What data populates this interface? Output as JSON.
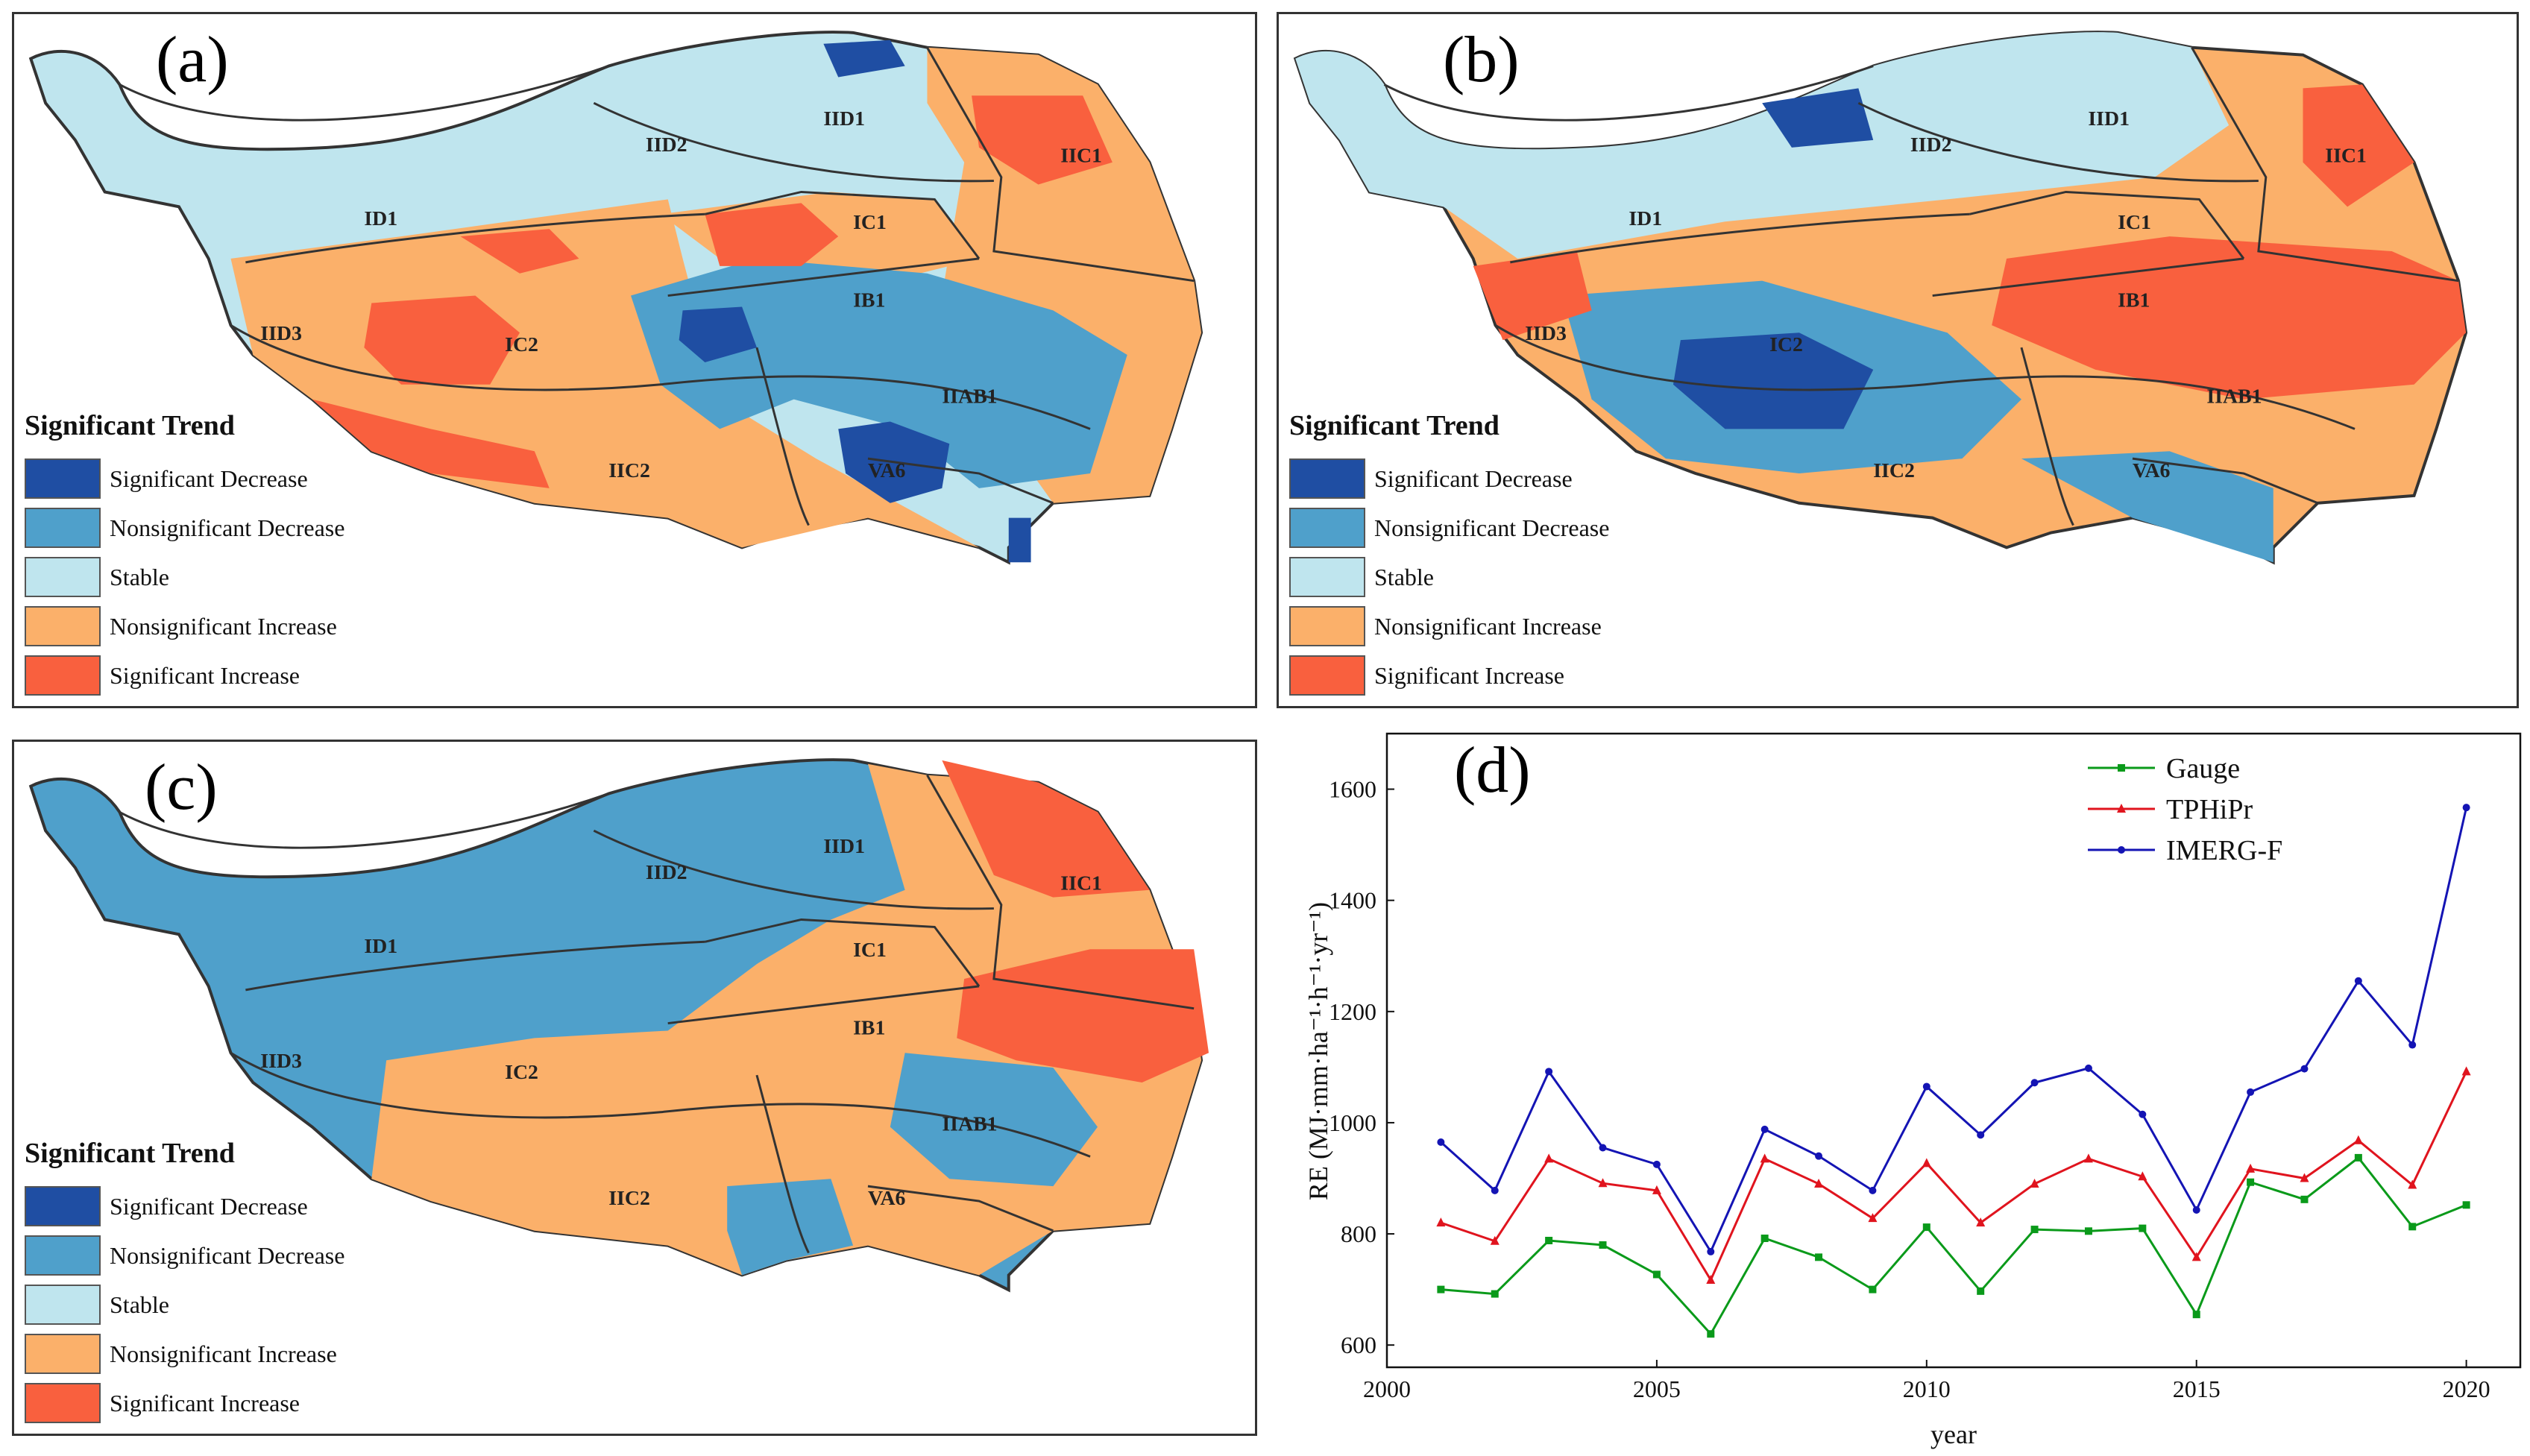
{
  "panels": {
    "a": {
      "label": "(a)"
    },
    "b": {
      "label": "(b)"
    },
    "c": {
      "label": "(c)"
    },
    "d": {
      "label": "(d)"
    }
  },
  "legend": {
    "title": "Significant Trend",
    "items": [
      {
        "label": "Significant Decrease",
        "color": "#1f4ea3"
      },
      {
        "label": "Nonsignificant Decrease",
        "color": "#4fa0cb"
      },
      {
        "label": "Stable",
        "color": "#bfe5ee"
      },
      {
        "label": "Nonsignificant Increase",
        "color": "#fbb06a"
      },
      {
        "label": "Significant Increase",
        "color": "#f9603e"
      }
    ]
  },
  "regions": {
    "IID1": "IID1",
    "IID2": "IID2",
    "IIC1": "IIC1",
    "ID1": "ID1",
    "IC1": "IC1",
    "IB1": "IB1",
    "IID3": "IID3",
    "IC2": "IC2",
    "IIAB1": "IIAB1",
    "IIC2": "IIC2",
    "VA6": "VA6"
  },
  "chart_data": {
    "type": "line",
    "title": "",
    "xlabel": "year",
    "ylabel": "RE (MJ·mm·ha⁻¹·h⁻¹·yr⁻¹)",
    "xlim": [
      2000,
      2021
    ],
    "ylim": [
      560,
      1700
    ],
    "x_ticks": [
      2000,
      2005,
      2010,
      2015,
      2020
    ],
    "y_ticks": [
      600,
      800,
      1000,
      1200,
      1400,
      1600
    ],
    "x": [
      2001,
      2002,
      2003,
      2004,
      2005,
      2006,
      2007,
      2008,
      2009,
      2010,
      2011,
      2012,
      2013,
      2014,
      2015,
      2016,
      2017,
      2018,
      2019,
      2020
    ],
    "series": [
      {
        "name": "Gauge",
        "color": "#0a9a1a",
        "marker": "square",
        "values": [
          700,
          692,
          788,
          780,
          727,
          620,
          792,
          758,
          700,
          812,
          697,
          808,
          805,
          810,
          655,
          893,
          862,
          937,
          813,
          852
        ]
      },
      {
        "name": "TPHiPr",
        "color": "#e0141e",
        "marker": "triangle",
        "values": [
          820,
          787,
          935,
          891,
          878,
          717,
          935,
          890,
          828,
          927,
          820,
          890,
          935,
          903,
          758,
          917,
          900,
          968,
          888,
          1092
        ]
      },
      {
        "name": "IMERG-F",
        "color": "#1414b4",
        "marker": "circle",
        "values": [
          965,
          878,
          1092,
          955,
          925,
          768,
          988,
          940,
          878,
          1065,
          978,
          1072,
          1098,
          1015,
          843,
          1055,
          1097,
          1255,
          1140,
          1567
        ]
      }
    ],
    "legend_position": "top-right"
  }
}
